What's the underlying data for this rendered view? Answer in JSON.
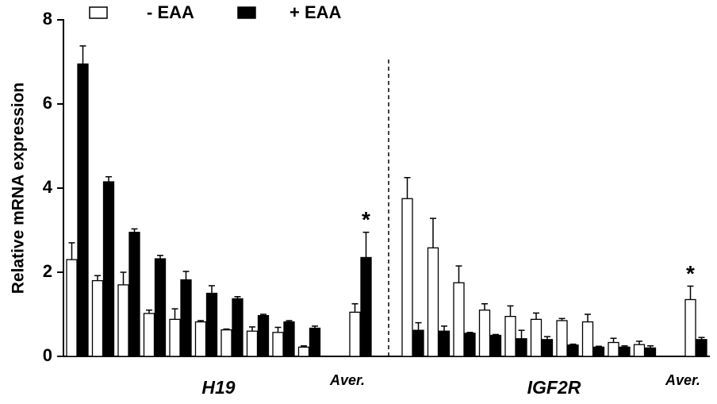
{
  "chart_data": {
    "type": "grouped-bar",
    "y_label": "Relative mRNA expression",
    "ylim": [
      0,
      8
    ],
    "yticks": [
      0,
      2,
      4,
      6,
      8
    ],
    "series": [
      {
        "name": "- EAA",
        "color": "#ffffff"
      },
      {
        "name": "+ EAA",
        "color": "#000000"
      }
    ],
    "groups": [
      {
        "name": "H19",
        "categories": [
          null,
          null,
          null,
          null,
          null,
          null,
          null,
          null,
          null,
          null,
          "Aver."
        ],
        "series": [
          {
            "values": [
              2.3,
              1.8,
              1.7,
              1.02,
              0.88,
              0.82,
              0.63,
              0.6,
              0.57,
              0.22,
              1.05
            ],
            "errors": [
              0.4,
              0.12,
              0.3,
              0.08,
              0.25,
              0.03,
              0.02,
              0.1,
              0.12,
              0.03,
              0.2
            ],
            "annotations": [
              null,
              null,
              null,
              null,
              null,
              null,
              null,
              null,
              null,
              null,
              null
            ]
          },
          {
            "values": [
              6.95,
              4.15,
              2.95,
              2.32,
              1.82,
              1.5,
              1.37,
              0.97,
              0.82,
              0.67,
              2.35
            ],
            "errors": [
              0.43,
              0.12,
              0.08,
              0.08,
              0.2,
              0.18,
              0.05,
              0.03,
              0.03,
              0.05,
              0.6
            ],
            "annotations": [
              null,
              null,
              null,
              null,
              null,
              null,
              null,
              null,
              null,
              null,
              "*"
            ]
          }
        ]
      },
      {
        "name": "IGF2R",
        "categories": [
          null,
          null,
          null,
          null,
          null,
          null,
          null,
          null,
          null,
          null,
          "Aver."
        ],
        "series": [
          {
            "values": [
              3.75,
              2.58,
              1.75,
              1.1,
              0.95,
              0.88,
              0.85,
              0.82,
              0.33,
              0.28,
              1.35
            ],
            "errors": [
              0.5,
              0.7,
              0.4,
              0.15,
              0.25,
              0.15,
              0.05,
              0.18,
              0.1,
              0.08,
              0.32
            ],
            "annotations": [
              null,
              null,
              null,
              null,
              null,
              null,
              null,
              null,
              null,
              null,
              "*"
            ]
          },
          {
            "values": [
              0.62,
              0.6,
              0.55,
              0.5,
              0.42,
              0.4,
              0.27,
              0.22,
              0.22,
              0.2,
              0.4
            ],
            "errors": [
              0.18,
              0.12,
              0.02,
              0.02,
              0.2,
              0.07,
              0.02,
              0.02,
              0.03,
              0.05,
              0.05
            ],
            "annotations": [
              null,
              null,
              null,
              null,
              null,
              null,
              null,
              null,
              null,
              null,
              null
            ]
          }
        ]
      }
    ]
  }
}
